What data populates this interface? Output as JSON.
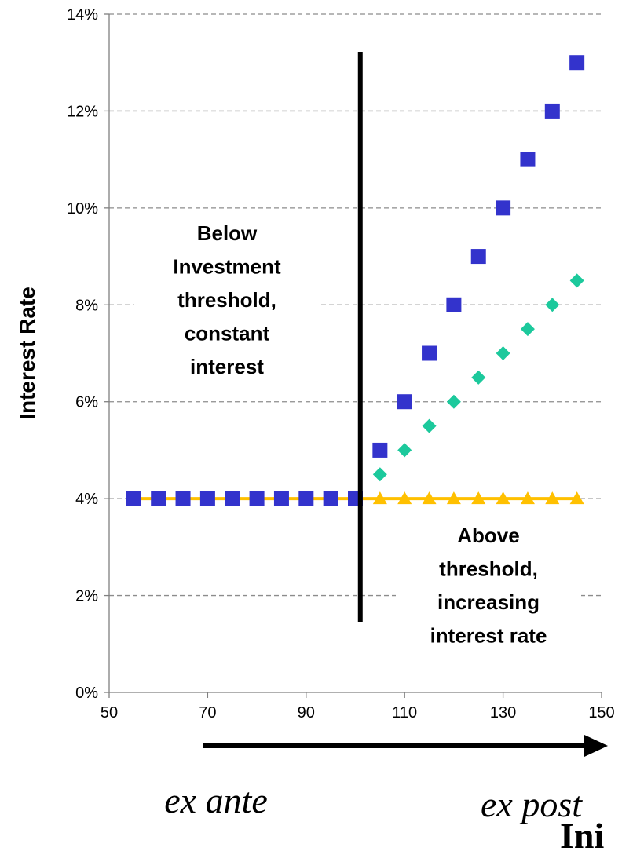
{
  "chart_data": {
    "type": "scatter",
    "title": "",
    "xlabel": "",
    "ylabel": "Interest Rate",
    "xlim": [
      50,
      150
    ],
    "ylim": [
      0,
      0.14
    ],
    "x_ticks": [
      50,
      70,
      90,
      110,
      130,
      150
    ],
    "x_tick_labels": [
      "50",
      "70",
      "90",
      "110",
      "130",
      "150"
    ],
    "y_ticks": [
      0,
      0.02,
      0.04,
      0.06,
      0.08,
      0.1,
      0.12,
      0.14
    ],
    "y_tick_labels": [
      "0%",
      "2%",
      "4%",
      "6%",
      "8%",
      "10%",
      "12%",
      "14%"
    ],
    "grid": "horizontal dashed",
    "legend": "none",
    "series": [
      {
        "marker": "triangle",
        "color": "#FFC000",
        "line": true,
        "points": [
          {
            "x": 55,
            "y": 0.04
          },
          {
            "x": 60,
            "y": 0.04
          },
          {
            "x": 65,
            "y": 0.04
          },
          {
            "x": 70,
            "y": 0.04
          },
          {
            "x": 75,
            "y": 0.04
          },
          {
            "x": 80,
            "y": 0.04
          },
          {
            "x": 85,
            "y": 0.04
          },
          {
            "x": 90,
            "y": 0.04
          },
          {
            "x": 95,
            "y": 0.04
          },
          {
            "x": 100,
            "y": 0.04
          },
          {
            "x": 105,
            "y": 0.04
          },
          {
            "x": 110,
            "y": 0.04
          },
          {
            "x": 115,
            "y": 0.04
          },
          {
            "x": 120,
            "y": 0.04
          },
          {
            "x": 125,
            "y": 0.04
          },
          {
            "x": 130,
            "y": 0.04
          },
          {
            "x": 135,
            "y": 0.04
          },
          {
            "x": 140,
            "y": 0.04
          },
          {
            "x": 145,
            "y": 0.04
          }
        ]
      },
      {
        "marker": "diamond",
        "color": "#1CC99C",
        "line": false,
        "points": [
          {
            "x": 55,
            "y": 0.04
          },
          {
            "x": 60,
            "y": 0.04
          },
          {
            "x": 65,
            "y": 0.04
          },
          {
            "x": 70,
            "y": 0.04
          },
          {
            "x": 75,
            "y": 0.04
          },
          {
            "x": 80,
            "y": 0.04
          },
          {
            "x": 85,
            "y": 0.04
          },
          {
            "x": 90,
            "y": 0.04
          },
          {
            "x": 95,
            "y": 0.04
          },
          {
            "x": 100,
            "y": 0.04
          },
          {
            "x": 105,
            "y": 0.045
          },
          {
            "x": 110,
            "y": 0.05
          },
          {
            "x": 115,
            "y": 0.055
          },
          {
            "x": 120,
            "y": 0.06
          },
          {
            "x": 125,
            "y": 0.065
          },
          {
            "x": 130,
            "y": 0.07
          },
          {
            "x": 135,
            "y": 0.075
          },
          {
            "x": 140,
            "y": 0.08
          },
          {
            "x": 145,
            "y": 0.085
          }
        ]
      },
      {
        "marker": "square",
        "color": "#3333CC",
        "line": false,
        "points": [
          {
            "x": 55,
            "y": 0.04
          },
          {
            "x": 60,
            "y": 0.04
          },
          {
            "x": 65,
            "y": 0.04
          },
          {
            "x": 70,
            "y": 0.04
          },
          {
            "x": 75,
            "y": 0.04
          },
          {
            "x": 80,
            "y": 0.04
          },
          {
            "x": 85,
            "y": 0.04
          },
          {
            "x": 90,
            "y": 0.04
          },
          {
            "x": 95,
            "y": 0.04
          },
          {
            "x": 100,
            "y": 0.04
          },
          {
            "x": 105,
            "y": 0.05
          },
          {
            "x": 110,
            "y": 0.06
          },
          {
            "x": 115,
            "y": 0.07
          },
          {
            "x": 120,
            "y": 0.08
          },
          {
            "x": 125,
            "y": 0.09
          },
          {
            "x": 130,
            "y": 0.1
          },
          {
            "x": 135,
            "y": 0.11
          },
          {
            "x": 140,
            "y": 0.12
          },
          {
            "x": 145,
            "y": 0.13
          }
        ]
      }
    ],
    "threshold_x": 101,
    "annotations": {
      "below": [
        "Below",
        "Investment",
        "threshold,",
        "constant",
        "interest"
      ],
      "above": [
        "Above",
        "threshold,",
        "increasing",
        "interest rate"
      ]
    }
  },
  "footer": {
    "ex_ante": "ex ante",
    "ex_post": "ex post",
    "clipped_title": "Ini"
  }
}
